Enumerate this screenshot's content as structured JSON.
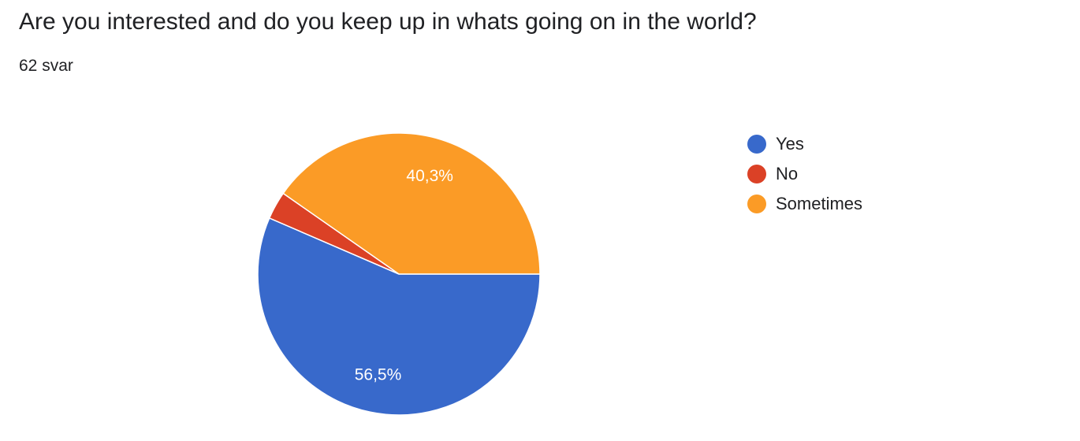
{
  "title": "Are you interested and do you keep up in whats going on in the world?",
  "response_count": "62 svar",
  "chart_data": {
    "type": "pie",
    "categories": [
      "Yes",
      "No",
      "Sometimes"
    ],
    "values": [
      56.5,
      3.2,
      40.3
    ],
    "labels": [
      "56,5%",
      "",
      "40,3%"
    ],
    "colors": [
      "#3869cb",
      "#db4126",
      "#fb9b26"
    ],
    "legend_position": "right"
  }
}
